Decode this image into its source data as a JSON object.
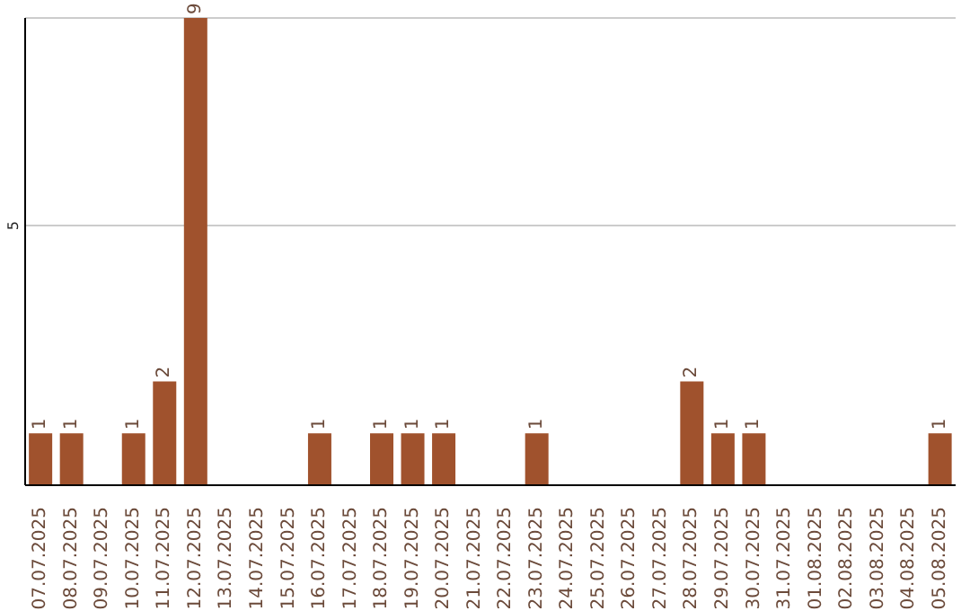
{
  "chart_data": {
    "type": "bar",
    "categories": [
      "07.07.2025",
      "08.07.2025",
      "09.07.2025",
      "10.07.2025",
      "11.07.2025",
      "12.07.2025",
      "13.07.2025",
      "14.07.2025",
      "15.07.2025",
      "16.07.2025",
      "17.07.2025",
      "18.07.2025",
      "19.07.2025",
      "20.07.2025",
      "21.07.2025",
      "22.07.2025",
      "23.07.2025",
      "24.07.2025",
      "25.07.2025",
      "26.07.2025",
      "27.07.2025",
      "28.07.2025",
      "29.07.2025",
      "30.07.2025",
      "31.07.2025",
      "01.08.2025",
      "02.08.2025",
      "03.08.2025",
      "04.08.2025",
      "05.08.2025"
    ],
    "values": [
      1,
      1,
      0,
      1,
      2,
      9,
      0,
      0,
      0,
      1,
      0,
      1,
      1,
      1,
      0,
      0,
      1,
      0,
      0,
      0,
      0,
      2,
      1,
      1,
      0,
      0,
      0,
      0,
      0,
      1
    ],
    "value_labels": [
      "1",
      "1",
      null,
      "1",
      "2",
      "9",
      null,
      null,
      null,
      "1",
      null,
      "1",
      "1",
      "1",
      null,
      null,
      "1",
      null,
      null,
      null,
      null,
      "2",
      "1",
      "1",
      null,
      null,
      null,
      null,
      null,
      "1"
    ],
    "color": "#a0522d",
    "ylim": [
      0,
      9
    ],
    "yticks": [
      {
        "value": 0,
        "label": null
      },
      5
    ],
    "grid": "y"
  }
}
